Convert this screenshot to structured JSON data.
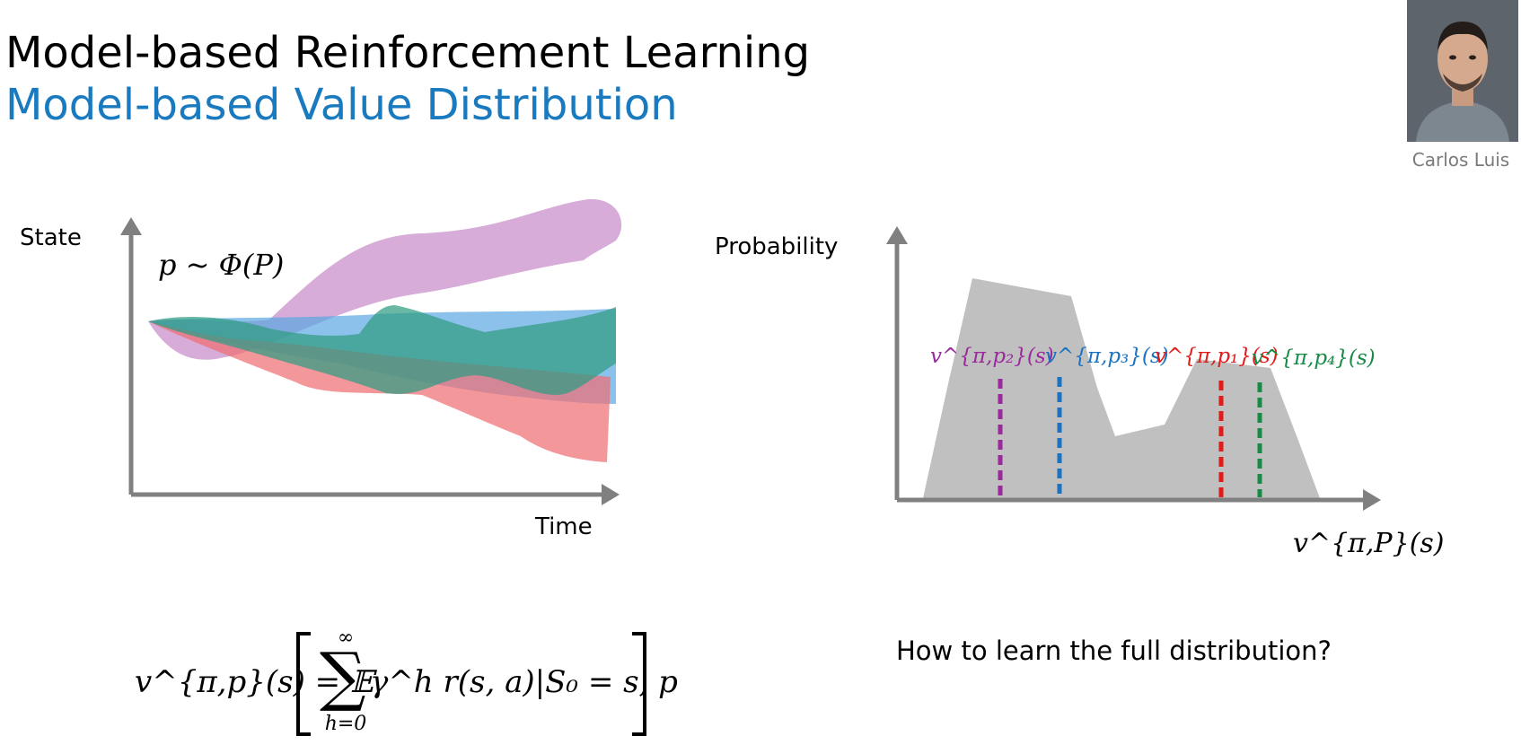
{
  "slide": {
    "title": "Model-based Reinforcement Learning",
    "subtitle": "Model-based Value Distribution",
    "presenter": "Carlos Luis",
    "question": "How to learn the full distribution?"
  },
  "left_diagram": {
    "y_label": "State",
    "x_label": "Time",
    "model_sample": "p ~ Φ(P)",
    "band_colors": [
      "#c27fc3",
      "#5aa6e3",
      "#ee6f74",
      "#2f9c82"
    ]
  },
  "right_diagram": {
    "y_label": "Probability",
    "x_label": "v^{π,P}(s)",
    "fill_color": "#c0c0c0",
    "markers": [
      {
        "label": "v^{π,p₂}(s)",
        "color": "#9a2a9c"
      },
      {
        "label": "v^{π,p₃}(s)",
        "color": "#1a72c0"
      },
      {
        "label": "v^{π,p₁}(s)",
        "color": "#e11a1a"
      },
      {
        "label": "v^{π,p₄}(s)",
        "color": "#178a45"
      }
    ]
  },
  "formula": {
    "lhs": "v^{π,p}(s) = 𝔼",
    "sum_upper": "∞",
    "sum_lower": "h=0",
    "body": "γ^h r(s, a)|S₀ = s, p"
  }
}
